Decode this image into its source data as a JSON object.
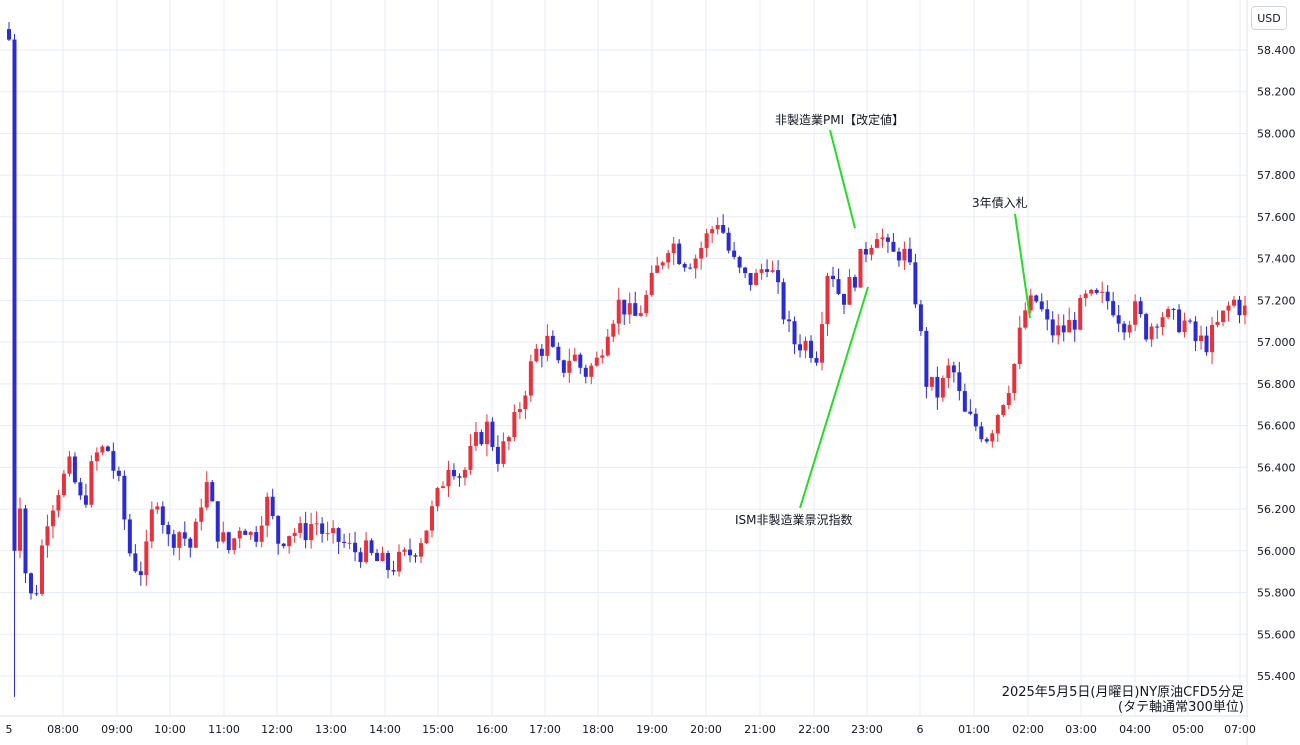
{
  "currency_label": "USD",
  "caption": {
    "line1": "2025年5月5日(月曜日)NY原油CFD5分足",
    "line2": "(タテ軸通常300単位)"
  },
  "chart_data": {
    "type": "candlestick",
    "ylim": [
      55.3,
      58.55
    ],
    "y_ticks": [
      "58.400",
      "58.200",
      "58.000",
      "57.800",
      "57.600",
      "57.400",
      "57.200",
      "57.000",
      "56.800",
      "56.600",
      "56.400",
      "56.200",
      "56.000",
      "55.800",
      "55.600",
      "55.400"
    ],
    "x_ticks": [
      "5",
      "08:00",
      "09:00",
      "10:00",
      "11:00",
      "12:00",
      "13:00",
      "14:00",
      "15:00",
      "16:00",
      "17:00",
      "18:00",
      "19:00",
      "20:00",
      "21:00",
      "22:00",
      "23:00",
      "6",
      "01:00",
      "02:00",
      "03:00",
      "04:00",
      "05:00",
      "07:00"
    ],
    "grid": true,
    "colors": {
      "up": "#e8313b",
      "down": "#2b2bd6",
      "annotation": "#22dd22"
    },
    "path_closes": [
      58.48,
      56.0,
      55.72,
      56.15,
      56.3,
      56.4,
      56.2,
      56.45,
      56.5,
      56.3,
      55.95,
      55.9,
      56.3,
      56.05,
      56.1,
      56.0,
      56.35,
      56.1,
      56.0,
      56.15,
      56.05,
      56.25,
      56.05,
      56.1,
      56.08,
      56.15,
      56.05,
      56.05,
      56.0,
      56.0,
      55.95,
      55.92,
      55.95,
      56.0,
      56.1,
      56.25,
      56.45,
      56.35,
      56.5,
      56.6,
      56.45,
      56.55,
      56.75,
      56.95,
      57.0,
      56.85,
      56.95,
      56.85,
      56.9,
      57.1,
      57.2,
      57.1,
      57.2,
      57.35,
      57.5,
      57.4,
      57.4,
      57.5,
      57.6,
      57.4,
      57.3,
      57.3,
      57.4,
      57.2,
      57.0,
      57.0,
      56.95,
      57.4,
      57.2,
      57.3,
      57.45,
      57.55,
      57.4,
      57.45,
      57.25,
      56.8,
      56.75,
      56.9,
      56.65,
      56.6,
      56.55,
      56.7,
      56.85,
      57.15,
      57.2,
      57.05,
      57.05,
      57.1,
      57.2,
      57.2,
      57.2,
      57.1,
      57.15,
      57.05,
      57.15,
      57.1,
      57.1,
      57.0,
      57.0,
      57.1,
      57.2,
      57.15
    ],
    "annotations": [
      {
        "text": "非製造業PMI【改定値】",
        "at_time": "22:45",
        "y": 57.55
      },
      {
        "text": "3年債入札",
        "at_time": "02:00",
        "y": 57.1
      },
      {
        "text": "ISM非製造業景況指数",
        "at_time": "23:00",
        "y": 57.2
      }
    ]
  }
}
